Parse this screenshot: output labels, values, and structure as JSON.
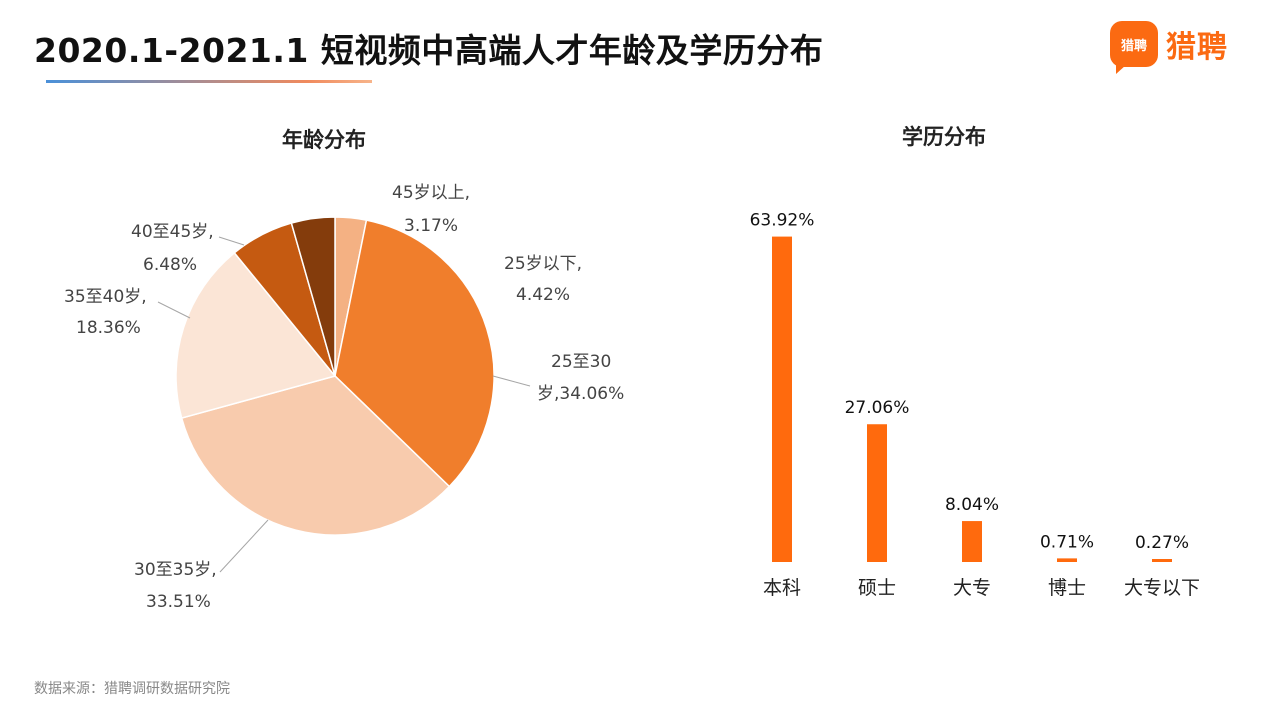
{
  "header": {
    "title": "2020.1-2021.1 短视频中高端人才年龄及学历分布",
    "logo_badge": "猎聘",
    "logo_text": "猎聘"
  },
  "footer": {
    "source": "数据来源：猎聘调研数据研究院"
  },
  "chart_data": [
    {
      "type": "pie",
      "title": "年龄分布",
      "slices": [
        {
          "label": "45岁以上,",
          "pct_label": "3.17%",
          "value": 3.17,
          "color": "#f4b183"
        },
        {
          "label": "25至30",
          "pct_label": "岁,34.06%",
          "value": 34.06,
          "color": "#f07e2c"
        },
        {
          "label": "30至35岁,",
          "pct_label": "33.51%",
          "value": 33.51,
          "color": "#f8cbad"
        },
        {
          "label": "35至40岁,",
          "pct_label": "18.36%",
          "value": 18.36,
          "color": "#fbe5d6"
        },
        {
          "label": "40至45岁,",
          "pct_label": "6.48%",
          "value": 6.48,
          "color": "#c55a11"
        },
        {
          "label": "25岁以下,",
          "pct_label": "4.42%",
          "value": 4.42,
          "color": "#843c0c"
        }
      ]
    },
    {
      "type": "bar",
      "title": "学历分布",
      "categories": [
        "本科",
        "硕士",
        "大专",
        "博士",
        "大专以下"
      ],
      "values": [
        63.92,
        27.06,
        8.04,
        0.71,
        0.27
      ],
      "value_labels": [
        "63.92%",
        "27.06%",
        "8.04%",
        "0.71%",
        "0.27%"
      ],
      "color": "#ff6a0d",
      "ylim": [
        0,
        66
      ]
    }
  ]
}
